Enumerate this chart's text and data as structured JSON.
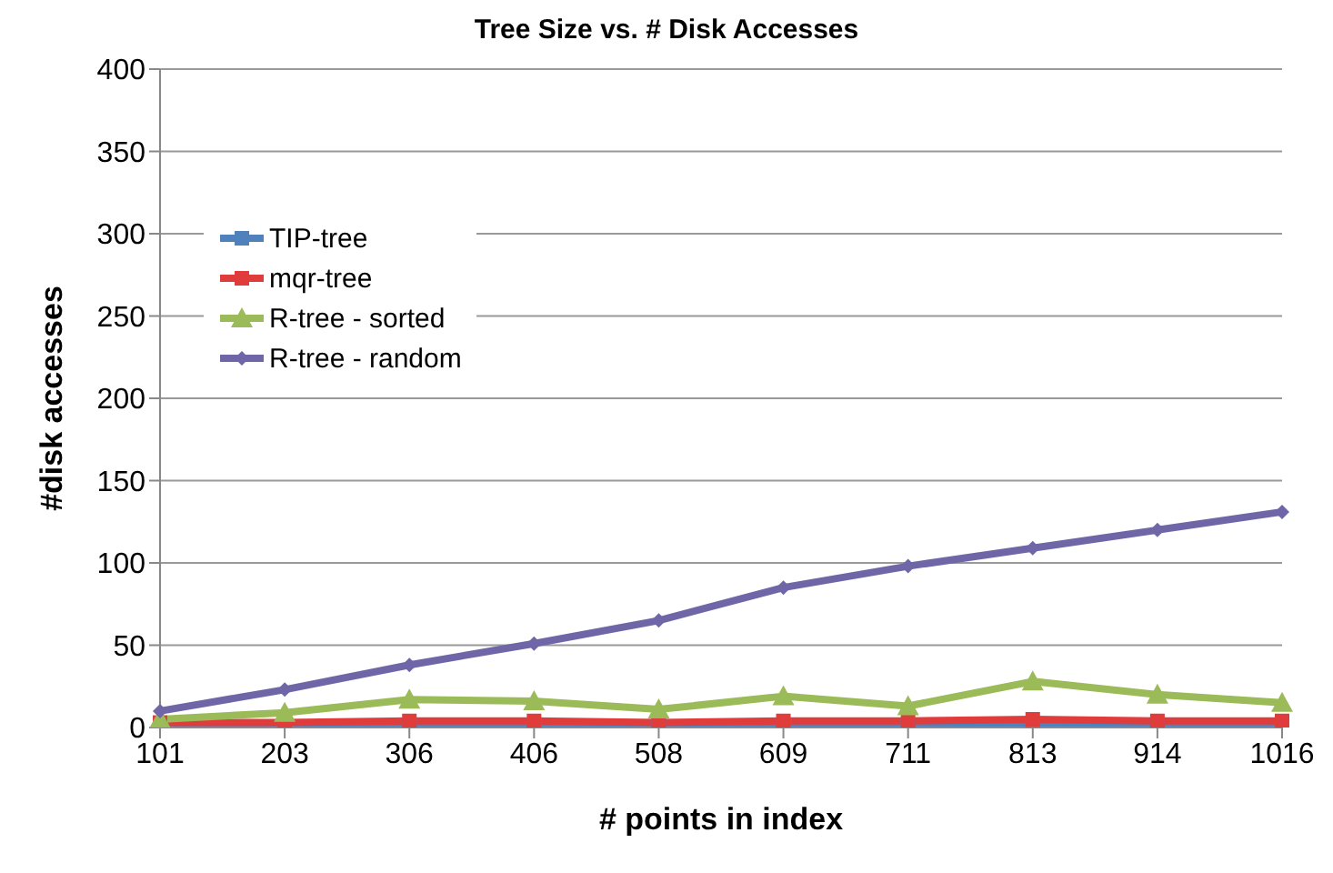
{
  "chart_data": {
    "type": "line",
    "title": "Tree Size vs. # Disk Accesses",
    "xlabel": "# points in index",
    "ylabel": "#disk accesses",
    "categories": [
      "101",
      "203",
      "306",
      "406",
      "508",
      "609",
      "711",
      "813",
      "914",
      "1016"
    ],
    "series": [
      {
        "name": "TIP-tree",
        "color": "#4f81bd",
        "marker": "square",
        "values": [
          1,
          1,
          1,
          1,
          1,
          1,
          1,
          1,
          1,
          1
        ]
      },
      {
        "name": "mqr-tree",
        "color": "#e03c3c",
        "marker": "square",
        "values": [
          3,
          3,
          4,
          4,
          3,
          4,
          4,
          5,
          4,
          4
        ]
      },
      {
        "name": "R-tree - sorted",
        "color": "#9bbb59",
        "marker": "triangle",
        "values": [
          5,
          9,
          17,
          16,
          11,
          19,
          13,
          28,
          20,
          15
        ]
      },
      {
        "name": "R-tree - random",
        "color": "#6f66a8",
        "marker": "diamond",
        "values": [
          10,
          23,
          38,
          51,
          65,
          85,
          98,
          109,
          120,
          131
        ]
      }
    ],
    "ylim": [
      0,
      400
    ],
    "yticks": [
      0,
      50,
      100,
      150,
      200,
      250,
      300,
      350,
      400
    ],
    "grid": "y",
    "legend": "top left"
  }
}
